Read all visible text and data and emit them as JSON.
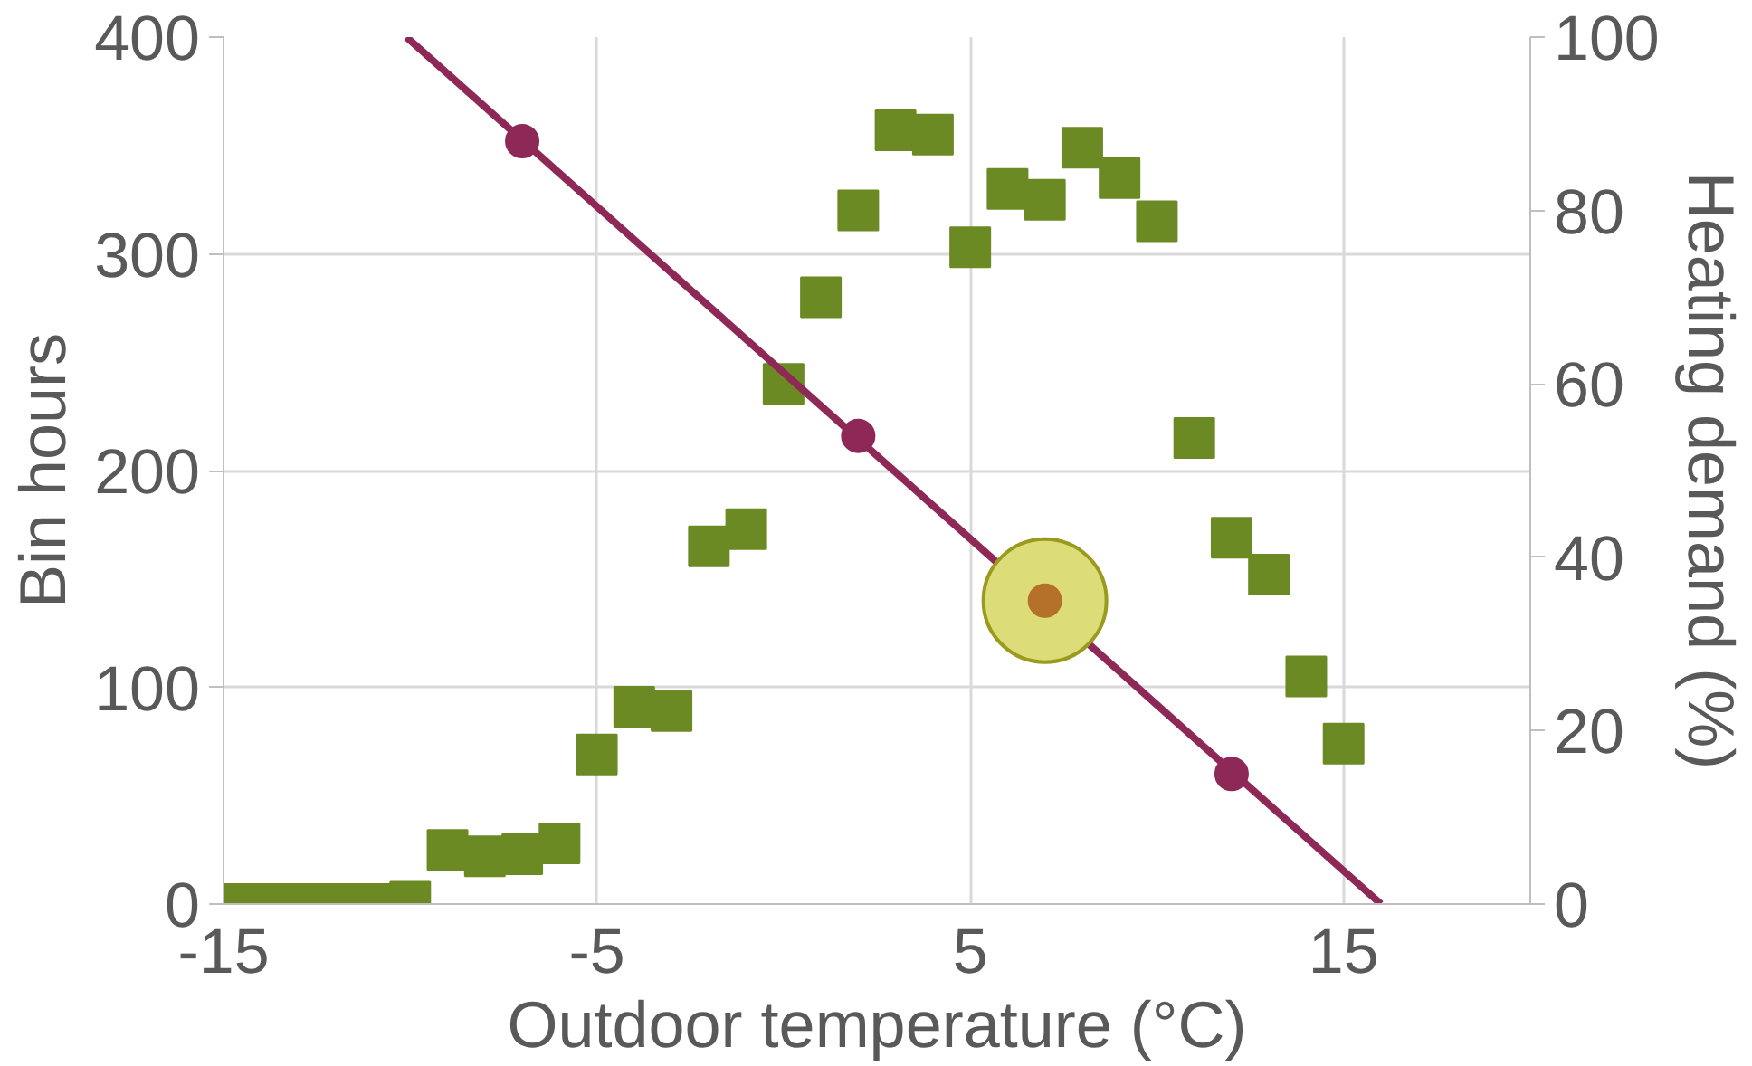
{
  "chart_data": {
    "type": "scatter",
    "xlabel": "Outdoor temperature (°C)",
    "ylabel": "Bin hours",
    "y2label": "Heating demand (%)",
    "xlim": [
      -15,
      20
    ],
    "xticks": [
      -15,
      -5,
      5,
      15
    ],
    "ylim": [
      0,
      400
    ],
    "yticks": [
      0,
      100,
      200,
      300,
      400
    ],
    "y2lim": [
      0,
      100
    ],
    "y2ticks": [
      0,
      20,
      40,
      60,
      80,
      100
    ],
    "grid": true,
    "series": [
      {
        "marker": "square",
        "color": "#6b8a24",
        "x": [
          -15,
          -14,
          -13,
          -12,
          -11,
          -10,
          -9,
          -8,
          -7,
          -6,
          -5,
          -4,
          -3,
          -2,
          -1,
          0,
          1,
          2,
          3,
          4,
          5,
          6,
          7,
          8,
          9,
          10,
          11,
          12,
          13,
          14,
          15
        ],
        "values": [
          0,
          0,
          0,
          0,
          0,
          1,
          25,
          22,
          23,
          28,
          69,
          91,
          89,
          165,
          173,
          240,
          280,
          320,
          357,
          355,
          303,
          330,
          325,
          349,
          335,
          315,
          215,
          169,
          152,
          105,
          74
        ]
      },
      {
        "type": "line",
        "axis": "y2",
        "marker": "none",
        "color": "#8e2957",
        "x": [
          -10.1,
          16
        ],
        "values": [
          100,
          0
        ]
      },
      {
        "type": "scatter",
        "axis": "y2",
        "marker": "circle",
        "color": "#8e2957",
        "x": [
          -7,
          2,
          12
        ],
        "values": [
          88,
          54,
          15
        ]
      },
      {
        "type": "bubble",
        "axis": "y2",
        "color": "#dcdc78",
        "x": [
          7
        ],
        "values": [
          35
        ],
        "sizes": [
          1
        ]
      },
      {
        "type": "scatter",
        "axis": "y2",
        "marker": "circle",
        "color": "#b5702a",
        "x": [
          7
        ],
        "values": [
          35
        ]
      }
    ]
  }
}
